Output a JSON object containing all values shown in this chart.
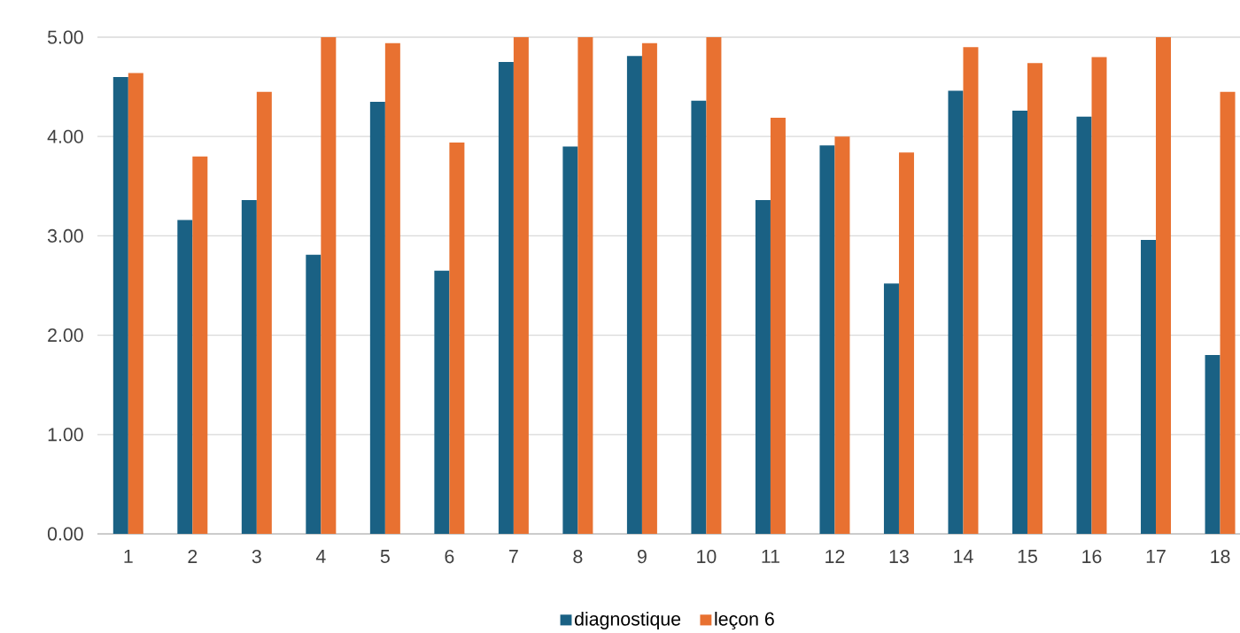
{
  "chart_data": {
    "type": "bar",
    "categories": [
      "1",
      "2",
      "3",
      "4",
      "5",
      "6",
      "7",
      "8",
      "9",
      "10",
      "11",
      "12",
      "13",
      "14",
      "15",
      "16",
      "17",
      "18"
    ],
    "series": [
      {
        "name": "diagnostique",
        "color": "#1a6184",
        "values": [
          4.6,
          3.16,
          3.36,
          2.81,
          4.35,
          2.65,
          4.75,
          3.9,
          4.81,
          4.36,
          3.36,
          3.91,
          2.52,
          4.46,
          4.26,
          4.2,
          2.96,
          1.8
        ]
      },
      {
        "name": "leçon 6",
        "color": "#e87131",
        "values": [
          4.64,
          3.8,
          4.45,
          5.0,
          4.94,
          3.94,
          5.0,
          5.0,
          4.94,
          5.0,
          4.19,
          4.0,
          3.84,
          4.9,
          4.74,
          4.8,
          5.0,
          4.45
        ]
      }
    ],
    "ylim": [
      0,
      5
    ],
    "yticks": [
      {
        "value": 0,
        "label": "0.00"
      },
      {
        "value": 1,
        "label": "1.00"
      },
      {
        "value": 2,
        "label": "2.00"
      },
      {
        "value": 3,
        "label": "3.00"
      },
      {
        "value": 4,
        "label": "4.00"
      },
      {
        "value": 5,
        "label": "5.00"
      }
    ],
    "grid": "y",
    "legend": "bottom"
  }
}
